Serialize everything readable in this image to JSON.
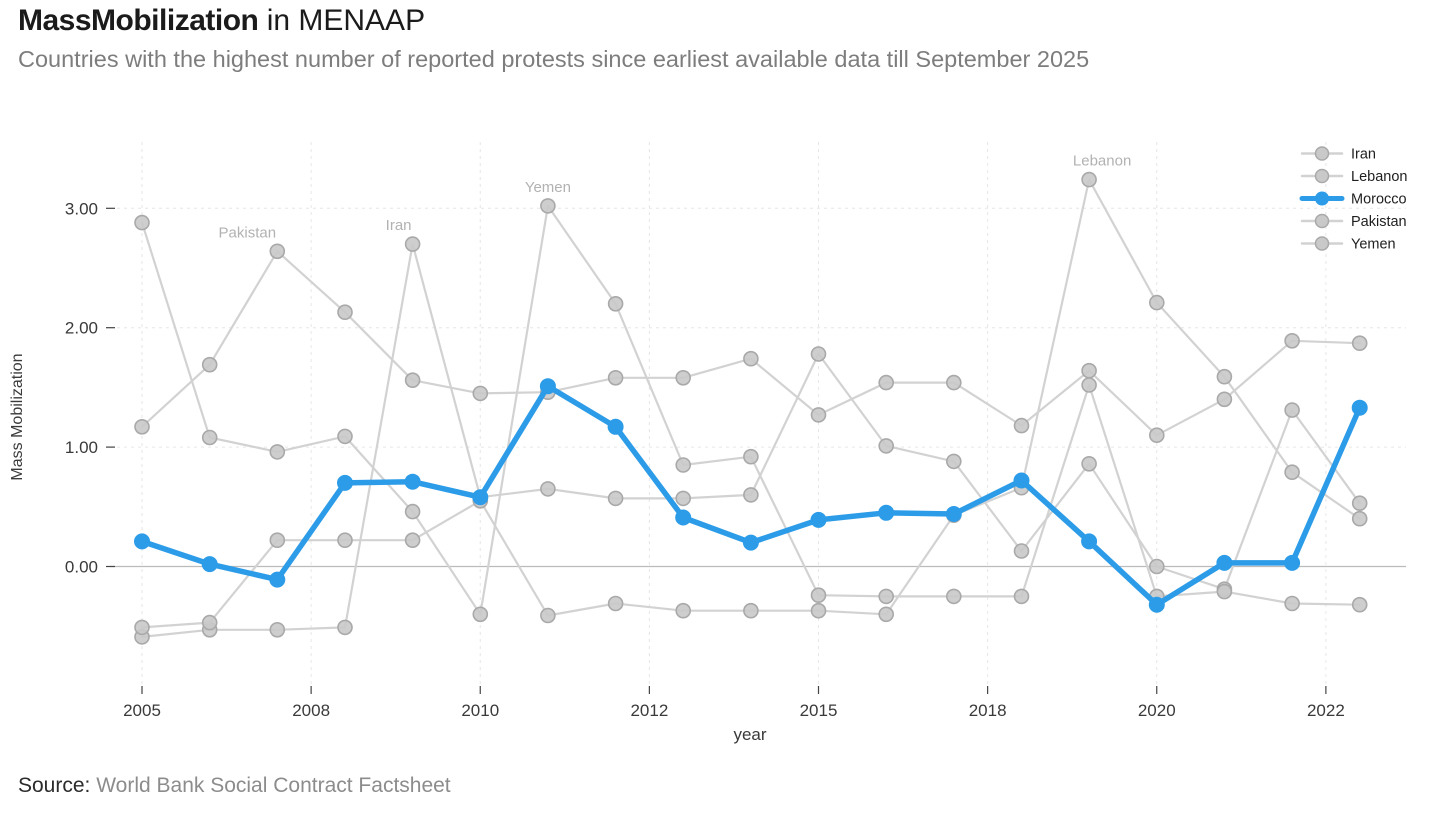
{
  "header": {
    "title_bold": "MassMobilization",
    "title_rest": " in MENAAP",
    "subtitle": "Countries with the highest number of reported protests since earliest available data till September 2025"
  },
  "source": {
    "label": "Source:",
    "text": " World Bank Social Contract Factsheet"
  },
  "chart_data": {
    "type": "line",
    "title": "MassMobilization in MENAAP",
    "subtitle": "Countries with the highest number of reported protests since earliest available data till September 2025",
    "xlabel": "year",
    "ylabel": "Mass Mobilization",
    "x": [
      2005,
      2006,
      2007,
      2008,
      2009,
      2010,
      2011,
      2012,
      2013,
      2014,
      2015,
      2016,
      2017,
      2018,
      2019,
      2020,
      2021,
      2022,
      2023
    ],
    "series": [
      {
        "name": "Iran",
        "highlight": false,
        "values": [
          -0.59,
          -0.53,
          -0.53,
          -0.51,
          2.7,
          0.58,
          0.65,
          0.57,
          0.57,
          0.6,
          1.78,
          1.01,
          0.88,
          0.13,
          0.86,
          0.0,
          -0.19,
          1.31,
          0.53
        ]
      },
      {
        "name": "Lebanon",
        "highlight": false,
        "values": [
          -0.51,
          -0.47,
          0.22,
          0.22,
          0.22,
          0.55,
          -0.41,
          -0.31,
          -0.37,
          -0.37,
          -0.37,
          -0.4,
          0.43,
          0.66,
          3.24,
          2.21,
          1.59,
          0.79,
          0.4
        ]
      },
      {
        "name": "Morocco",
        "highlight": true,
        "values": [
          0.21,
          0.02,
          -0.11,
          0.7,
          0.71,
          0.58,
          1.51,
          1.17,
          0.41,
          0.2,
          0.39,
          0.45,
          0.44,
          0.72,
          0.21,
          -0.32,
          0.03,
          0.03,
          1.33
        ]
      },
      {
        "name": "Pakistan",
        "highlight": false,
        "values": [
          1.17,
          1.69,
          2.64,
          2.13,
          1.56,
          1.45,
          1.46,
          1.58,
          1.58,
          1.74,
          1.27,
          1.54,
          1.54,
          1.18,
          1.64,
          1.1,
          1.4,
          1.89,
          1.87
        ]
      },
      {
        "name": "Yemen",
        "highlight": false,
        "values": [
          2.88,
          1.08,
          0.96,
          1.09,
          0.46,
          -0.4,
          3.02,
          2.2,
          0.85,
          0.92,
          -0.24,
          -0.25,
          -0.25,
          -0.25,
          1.52,
          -0.25,
          -0.21,
          -0.31,
          -0.32
        ]
      }
    ],
    "highlight_series": "Morocco",
    "colors": {
      "highlight": "#2d9ce8",
      "muted_line": "#d2d2d2",
      "muted_marker_fill": "#c9c9c9",
      "muted_marker_edge": "#a9a9a9",
      "grid": "#e6e6e6",
      "zero_line": "#bbbbbb",
      "tick_text": "#3a3a3a",
      "annotation_text": "#b2b2b2",
      "legend_text": "#1f1f1f"
    },
    "x_ticks": [
      {
        "pos": 2005.0,
        "label": "2005"
      },
      {
        "pos": 2007.5,
        "label": "2008"
      },
      {
        "pos": 2010.0,
        "label": "2010"
      },
      {
        "pos": 2012.5,
        "label": "2012"
      },
      {
        "pos": 2015.0,
        "label": "2015"
      },
      {
        "pos": 2017.5,
        "label": "2018"
      },
      {
        "pos": 2020.0,
        "label": "2020"
      },
      {
        "pos": 2022.5,
        "label": "2022"
      }
    ],
    "y_ticks": [
      {
        "pos": 0,
        "label": "0.00"
      },
      {
        "pos": 1,
        "label": "1.00"
      },
      {
        "pos": 2,
        "label": "2.00"
      },
      {
        "pos": 3,
        "label": "3.00"
      }
    ],
    "ylim": [
      -0.75,
      3.45
    ],
    "grid": "dashed",
    "legend_position": "top-right",
    "legend_order": [
      "Iran",
      "Lebanon",
      "Morocco",
      "Pakistan",
      "Yemen"
    ],
    "annotations": [
      {
        "text": "Pakistan",
        "year": 2007,
        "value": 2.64,
        "dx": -30
      },
      {
        "text": "Iran",
        "year": 2009,
        "value": 2.7,
        "dx": -14
      },
      {
        "text": "Yemen",
        "year": 2011,
        "value": 3.02,
        "dx": 0
      },
      {
        "text": "Lebanon",
        "year": 2019,
        "value": 3.24,
        "dx": 13
      }
    ]
  }
}
